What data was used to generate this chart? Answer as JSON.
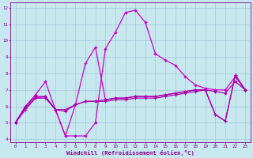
{
  "xlabel": "Windchill (Refroidissement éolien,°C)",
  "xlim": [
    -0.5,
    23.5
  ],
  "ylim": [
    3.8,
    12.3
  ],
  "xticks": [
    0,
    1,
    2,
    3,
    4,
    5,
    6,
    7,
    8,
    9,
    10,
    11,
    12,
    13,
    14,
    15,
    16,
    17,
    18,
    19,
    20,
    21,
    22,
    23
  ],
  "yticks": [
    4,
    5,
    6,
    7,
    8,
    9,
    10,
    11,
    12
  ],
  "background_color": "#c8e8f0",
  "grid_color": "#a0c8d8",
  "line_color": "#aa00aa",
  "line_color2": "#cc00cc",
  "series1_x": [
    0,
    1,
    2,
    3,
    4,
    5,
    6,
    7,
    8,
    9,
    10,
    11,
    12,
    13,
    14,
    15,
    16,
    17,
    18,
    19,
    20,
    21,
    22,
    23
  ],
  "series1_y": [
    5.0,
    6.0,
    6.7,
    7.5,
    5.8,
    4.2,
    4.2,
    4.2,
    5.0,
    9.5,
    10.5,
    11.7,
    11.85,
    11.1,
    9.2,
    8.8,
    8.5,
    7.8,
    7.3,
    7.1,
    7.0,
    7.0,
    7.8,
    7.0
  ],
  "series2_x": [
    0,
    1,
    2,
    3,
    4,
    5,
    6,
    7,
    8,
    9,
    10,
    11,
    12,
    13,
    14,
    15,
    16,
    17,
    18,
    19,
    20,
    21,
    22,
    23
  ],
  "series2_y": [
    5.0,
    6.0,
    6.6,
    6.6,
    5.8,
    5.8,
    6.1,
    6.3,
    6.3,
    6.4,
    6.5,
    6.5,
    6.6,
    6.6,
    6.6,
    6.7,
    6.8,
    6.9,
    7.0,
    7.0,
    6.9,
    6.8,
    7.5,
    7.0
  ],
  "series3_x": [
    0,
    1,
    2,
    3,
    4,
    5,
    6,
    7,
    8,
    9,
    10,
    11,
    12,
    13,
    14,
    15,
    16,
    17,
    18,
    19,
    20,
    21,
    22,
    23
  ],
  "series3_y": [
    5.0,
    5.9,
    6.5,
    6.5,
    5.8,
    5.7,
    6.1,
    6.3,
    6.3,
    6.3,
    6.4,
    6.4,
    6.5,
    6.5,
    6.5,
    6.6,
    6.7,
    6.8,
    6.9,
    7.0,
    5.5,
    5.1,
    7.9,
    7.0
  ],
  "series4_x": [
    0,
    1,
    2,
    3,
    4,
    5,
    6,
    7,
    8,
    9,
    10,
    11,
    12,
    13,
    14,
    15,
    16,
    17,
    18,
    19,
    20,
    21,
    22,
    23
  ],
  "series4_y": [
    5.0,
    5.8,
    6.5,
    6.6,
    5.8,
    4.2,
    6.1,
    8.6,
    9.6,
    6.4,
    6.5,
    6.5,
    6.6,
    6.6,
    6.6,
    6.7,
    6.8,
    6.9,
    7.0,
    7.0,
    5.5,
    5.1,
    7.9,
    7.0
  ]
}
